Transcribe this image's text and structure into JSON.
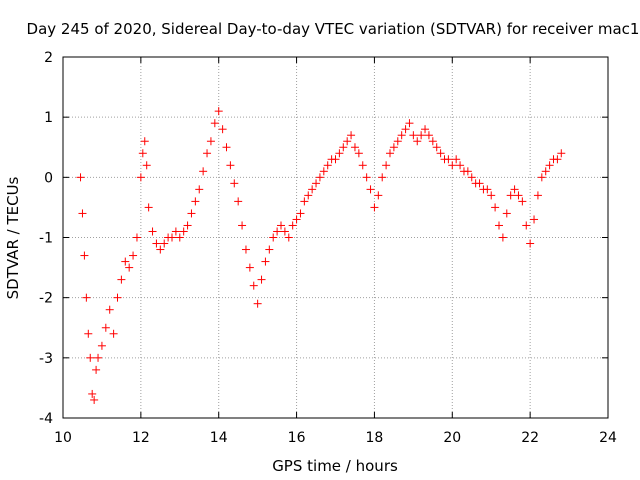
{
  "chart_data": {
    "type": "scatter",
    "title": "Day 245 of 2020, Sidereal Day-to-day VTEC variation (SDTVAR) for receiver mac1",
    "xlabel": "GPS time / hours",
    "ylabel": "SDTVAR / TECUs",
    "xlim": [
      10,
      24
    ],
    "ylim": [
      -4,
      2
    ],
    "xticks": [
      "10",
      "12",
      "14",
      "16",
      "18",
      "20",
      "22",
      "24"
    ],
    "yticks": [
      "-4",
      "-3",
      "-2",
      "-1",
      "0",
      "1",
      "2"
    ],
    "grid": true,
    "marker": "+",
    "color": "#ff0000",
    "series": [
      {
        "name": "SDTVAR",
        "x": [
          10.45,
          10.5,
          10.55,
          10.6,
          10.65,
          10.7,
          10.75,
          10.8,
          10.85,
          10.9,
          11.0,
          11.1,
          11.2,
          11.3,
          11.4,
          11.5,
          11.6,
          11.7,
          11.8,
          11.9,
          12.0,
          12.05,
          12.1,
          12.15,
          12.2,
          12.3,
          12.4,
          12.5,
          12.6,
          12.7,
          12.8,
          12.9,
          13.0,
          13.1,
          13.2,
          13.3,
          13.4,
          13.5,
          13.6,
          13.7,
          13.8,
          13.9,
          14.0,
          14.1,
          14.2,
          14.3,
          14.4,
          14.5,
          14.6,
          14.7,
          14.8,
          14.9,
          15.0,
          15.1,
          15.2,
          15.3,
          15.4,
          15.5,
          15.6,
          15.7,
          15.8,
          15.9,
          16.0,
          16.1,
          16.2,
          16.3,
          16.4,
          16.5,
          16.6,
          16.7,
          16.8,
          16.9,
          17.0,
          17.1,
          17.2,
          17.3,
          17.4,
          17.5,
          17.6,
          17.7,
          17.8,
          17.9,
          18.0,
          18.1,
          18.2,
          18.3,
          18.4,
          18.5,
          18.6,
          18.7,
          18.8,
          18.9,
          19.0,
          19.1,
          19.2,
          19.3,
          19.4,
          19.5,
          19.6,
          19.7,
          19.8,
          19.9,
          20.0,
          20.1,
          20.2,
          20.3,
          20.4,
          20.5,
          20.6,
          20.7,
          20.8,
          20.9,
          21.0,
          21.1,
          21.2,
          21.3,
          21.4,
          21.5,
          21.6,
          21.7,
          21.8,
          21.9,
          22.0,
          22.1,
          22.2,
          22.3,
          22.4,
          22.5,
          22.6,
          22.7,
          22.8
        ],
        "y": [
          0.0,
          -0.6,
          -1.3,
          -2.0,
          -2.6,
          -3.0,
          -3.6,
          -3.7,
          -3.2,
          -3.0,
          -2.8,
          -2.5,
          -2.2,
          -2.6,
          -2.0,
          -1.7,
          -1.4,
          -1.5,
          -1.3,
          -1.0,
          0.0,
          0.4,
          0.6,
          0.2,
          -0.5,
          -0.9,
          -1.1,
          -1.2,
          -1.1,
          -1.0,
          -1.0,
          -0.9,
          -1.0,
          -0.9,
          -0.8,
          -0.6,
          -0.4,
          -0.2,
          0.1,
          0.4,
          0.6,
          0.9,
          1.1,
          0.8,
          0.5,
          0.2,
          -0.1,
          -0.4,
          -0.8,
          -1.2,
          -1.5,
          -1.8,
          -2.1,
          -1.7,
          -1.4,
          -1.2,
          -1.0,
          -0.9,
          -0.8,
          -0.9,
          -1.0,
          -0.8,
          -0.7,
          -0.6,
          -0.4,
          -0.3,
          -0.2,
          -0.1,
          0.0,
          0.1,
          0.2,
          0.3,
          0.3,
          0.4,
          0.5,
          0.6,
          0.7,
          0.5,
          0.4,
          0.2,
          0.0,
          -0.2,
          -0.5,
          -0.3,
          0.0,
          0.2,
          0.4,
          0.5,
          0.6,
          0.7,
          0.8,
          0.9,
          0.7,
          0.6,
          0.7,
          0.8,
          0.7,
          0.6,
          0.5,
          0.4,
          0.3,
          0.3,
          0.2,
          0.3,
          0.2,
          0.1,
          0.1,
          0.0,
          -0.1,
          -0.1,
          -0.2,
          -0.2,
          -0.3,
          -0.5,
          -0.8,
          -1.0,
          -0.6,
          -0.3,
          -0.2,
          -0.3,
          -0.4,
          -0.8,
          -1.1,
          -0.7,
          -0.3,
          0.0,
          0.1,
          0.2,
          0.3,
          0.3,
          0.4
        ]
      }
    ]
  }
}
